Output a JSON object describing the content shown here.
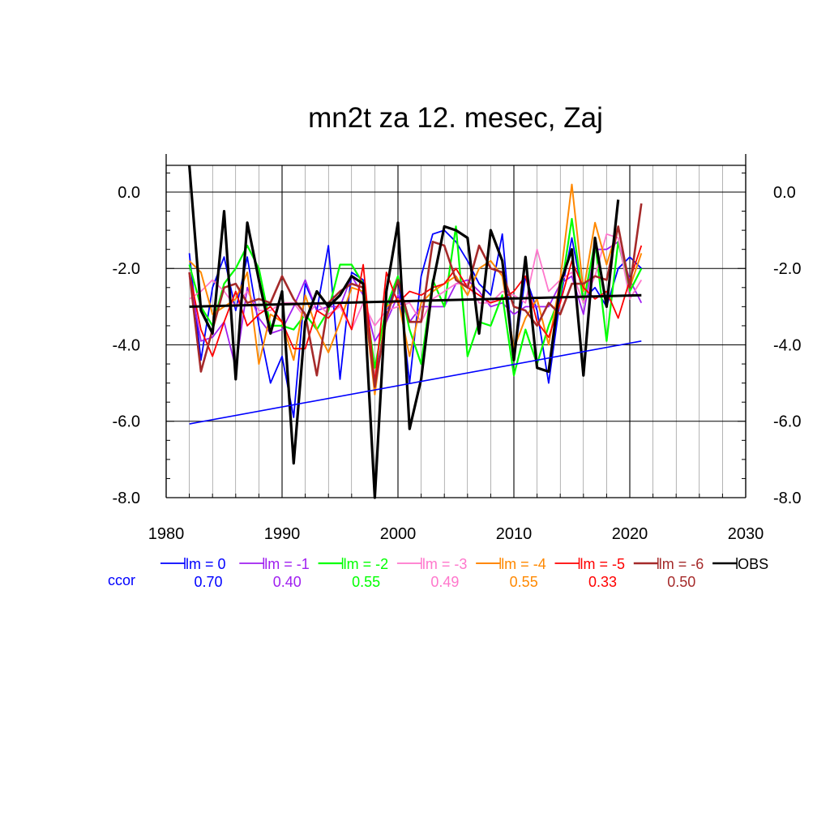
{
  "chart_data": {
    "type": "line",
    "title": "mn2t za 12. mesec, Zaj",
    "xlabel": "",
    "ylabel": "",
    "xlim": [
      1980,
      2030
    ],
    "ylim": [
      -8.0,
      0.7
    ],
    "x_ticks": [
      "1980",
      "1990",
      "2000",
      "2010",
      "2020",
      "2030"
    ],
    "y_ticks": [
      "0.0",
      "-2.0",
      "-4.0",
      "-6.0",
      "-8.0"
    ],
    "y_tick_values": [
      0,
      -2,
      -4,
      -6,
      -8
    ],
    "x_tick_values": [
      1980,
      1990,
      2000,
      2010,
      2020,
      2030
    ],
    "grid": true,
    "ccor_label": "ccor",
    "x": [
      1982,
      1983,
      1984,
      1985,
      1986,
      1987,
      1988,
      1989,
      1990,
      1991,
      1992,
      1993,
      1994,
      1995,
      1996,
      1997,
      1998,
      1999,
      2000,
      2001,
      2002,
      2003,
      2004,
      2005,
      2006,
      2007,
      2008,
      2009,
      2010,
      2011,
      2012,
      2013,
      2014,
      2015,
      2016,
      2017,
      2018,
      2019,
      2020,
      2021
    ],
    "series": [
      {
        "name": "lm = 0",
        "color": "#0000ff",
        "ccor": "0.70",
        "width": 1.8,
        "values": [
          -1.6,
          -4.4,
          -2.5,
          -1.7,
          -3.1,
          -1.7,
          -3.5,
          -5.0,
          -4.3,
          -5.9,
          -2.4,
          -3.1,
          -1.4,
          -4.9,
          -2.1,
          -2.3,
          -5.0,
          -3.2,
          -2.2,
          -5.0,
          -2.2,
          -1.1,
          -1.0,
          -1.3,
          -1.8,
          -2.4,
          -2.7,
          -1.1,
          -4.4,
          -2.2,
          -3.1,
          -5.0,
          -2.8,
          -1.2,
          -2.8,
          -2.5,
          -3.0,
          -2.0,
          -1.7,
          -2.0
        ]
      },
      {
        "name": "lm = -1",
        "color": "#a020f0",
        "ccor": "0.40",
        "width": 1.8,
        "values": [
          -2.2,
          -3.9,
          -3.8,
          -3.4,
          -4.6,
          -2.5,
          -3.3,
          -3.7,
          -3.6,
          -3.0,
          -2.3,
          -3.1,
          -3.0,
          -3.0,
          -2.2,
          -2.7,
          -3.9,
          -3.4,
          -2.7,
          -3.4,
          -3.0,
          -3.0,
          -3.0,
          -2.4,
          -2.3,
          -2.6,
          -3.0,
          -2.9,
          -3.2,
          -3.0,
          -3.0,
          -3.0,
          -2.4,
          -2.2,
          -3.2,
          -1.5,
          -1.5,
          -1.3,
          -2.3,
          -2.9
        ]
      },
      {
        "name": "lm = -2",
        "color": "#00ff00",
        "ccor": "0.55",
        "width": 2.2,
        "values": [
          -1.9,
          -3.0,
          -3.5,
          -2.4,
          -2.0,
          -1.4,
          -2.0,
          -3.5,
          -3.5,
          -3.6,
          -3.2,
          -3.6,
          -3.1,
          -1.9,
          -1.9,
          -2.4,
          -4.6,
          -3.0,
          -2.2,
          -3.6,
          -4.5,
          -2.3,
          -3.0,
          -0.9,
          -4.3,
          -3.4,
          -3.5,
          -2.7,
          -4.8,
          -3.6,
          -4.5,
          -3.5,
          -2.7,
          -0.7,
          -2.9,
          -1.3,
          -3.9,
          -1.3,
          -2.6,
          -2.0
        ]
      },
      {
        "name": "lm = -3",
        "color": "#ff77cc",
        "ccor": "0.49",
        "width": 1.8,
        "values": [
          -2.8,
          -2.6,
          -2.3,
          -2.6,
          -3.0,
          -2.6,
          -3.1,
          -3.1,
          -2.9,
          -2.9,
          -3.3,
          -2.9,
          -3.2,
          -3.0,
          -3.6,
          -2.9,
          -3.5,
          -3.1,
          -3.0,
          -2.9,
          -3.4,
          -2.8,
          -2.6,
          -2.4,
          -2.4,
          -2.9,
          -2.9,
          -2.6,
          -2.7,
          -2.9,
          -1.5,
          -2.6,
          -2.3,
          -2.1,
          -2.9,
          -2.2,
          -1.1,
          -1.2,
          -2.8,
          -2.3
        ]
      },
      {
        "name": "lm = -4",
        "color": "#ff8800",
        "ccor": "0.55",
        "width": 2.0,
        "values": [
          -1.8,
          -2.1,
          -3.2,
          -3.0,
          -2.8,
          -2.1,
          -4.5,
          -3.2,
          -3.4,
          -4.4,
          -2.7,
          -3.6,
          -4.2,
          -3.4,
          -2.5,
          -2.6,
          -5.3,
          -3.0,
          -2.8,
          -4.3,
          -2.9,
          -2.6,
          -2.4,
          -2.2,
          -2.7,
          -2.0,
          -1.8,
          -2.2,
          -4.1,
          -3.3,
          -2.8,
          -4.0,
          -2.3,
          0.2,
          -2.6,
          -0.8,
          -1.9,
          -0.9,
          -2.5,
          -1.6
        ]
      },
      {
        "name": "lm = -5",
        "color": "#ff0000",
        "ccor": "0.33",
        "width": 1.8,
        "values": [
          -2.1,
          -3.6,
          -4.3,
          -3.4,
          -2.6,
          -3.5,
          -3.2,
          -3.0,
          -3.4,
          -4.1,
          -4.1,
          -3.1,
          -3.3,
          -2.9,
          -3.6,
          -1.9,
          -5.0,
          -2.1,
          -2.9,
          -2.6,
          -2.7,
          -2.5,
          -2.4,
          -2.0,
          -2.5,
          -2.7,
          -2.9,
          -2.8,
          -2.6,
          -2.2,
          -3.4,
          -3.8,
          -2.9,
          -1.8,
          -2.5,
          -2.8,
          -2.6,
          -3.3,
          -2.3,
          -1.4
        ]
      },
      {
        "name": "lm = -6",
        "color": "#a52a2a",
        "ccor": "0.50",
        "width": 2.6,
        "values": [
          -2.1,
          -4.7,
          -3.6,
          -2.5,
          -2.4,
          -2.9,
          -2.8,
          -2.9,
          -2.2,
          -2.8,
          -3.2,
          -4.8,
          -2.9,
          -2.6,
          -2.4,
          -2.5,
          -5.1,
          -3.3,
          -2.3,
          -3.4,
          -3.4,
          -1.3,
          -1.4,
          -2.3,
          -2.5,
          -1.4,
          -2.0,
          -2.1,
          -3.0,
          -3.1,
          -3.5,
          -2.9,
          -3.2,
          -2.4,
          -2.4,
          -2.2,
          -2.3,
          -0.9,
          -2.5,
          -0.3
        ]
      },
      {
        "name": "OBS",
        "color": "#000000",
        "ccor": "",
        "width": 3.2,
        "values": [
          0.7,
          -3.1,
          -3.7,
          -0.5,
          -4.9,
          -0.8,
          -2.3,
          -3.7,
          -2.6,
          -7.1,
          -3.4,
          -2.6,
          -3.0,
          -2.7,
          -2.2,
          -2.4,
          -8.0,
          -2.6,
          -0.8,
          -6.2,
          -4.9,
          -2.4,
          -0.9,
          -1.0,
          -1.2,
          -3.7,
          -1.0,
          -1.8,
          -4.4,
          -1.7,
          -4.6,
          -4.7,
          -2.4,
          -1.5,
          -4.8,
          -1.2,
          -3.0,
          -0.2,
          null,
          null
        ]
      }
    ],
    "trend_lines": [
      {
        "series": "OBS",
        "color": "#000000",
        "width": 3.0,
        "x": [
          1982,
          2021
        ],
        "y": [
          -3.0,
          -2.7
        ]
      },
      {
        "series": "lm = 0",
        "color": "#0000ff",
        "width": 1.6,
        "x": [
          1982,
          2021
        ],
        "y": [
          -6.07,
          -3.9
        ]
      }
    ]
  }
}
